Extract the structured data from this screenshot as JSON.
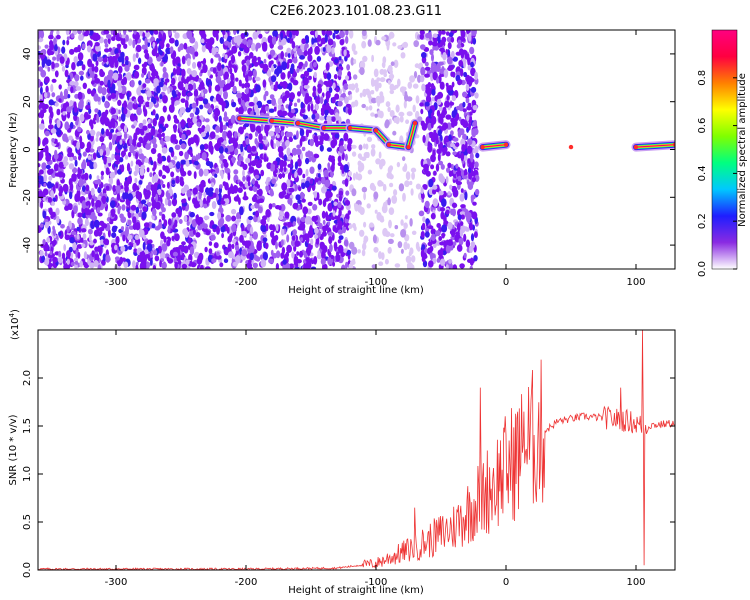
{
  "title": "C2E6.2023.101.08.23.G11",
  "chart_data": [
    {
      "type": "heatmap",
      "xlabel": "Height of straight line (km)",
      "ylabel": "Frequency (Hz)",
      "xlim": [
        -360,
        130
      ],
      "ylim": [
        -50,
        50
      ],
      "x_ticks": [
        -300,
        -200,
        -100,
        0,
        100
      ],
      "y_ticks": [
        -40,
        -20,
        0,
        20,
        40
      ],
      "colorbar": {
        "label": "Normalized spectral amplitude",
        "range": [
          0,
          1
        ],
        "ticks": [
          "0.0",
          "0.2",
          "0.4",
          "0.6",
          "0.8"
        ],
        "colormap": [
          "#ffffff",
          "#8a2be2",
          "#1e1eff",
          "#00c8ff",
          "#00ff80",
          "#80ff00",
          "#ffff00",
          "#ff8000",
          "#ff0040",
          "#ff0080"
        ]
      },
      "regions": [
        {
          "name": "noise",
          "x_range": [
            -360,
            -120
          ],
          "freq_range": [
            -50,
            50
          ],
          "amplitude": 0.1
        },
        {
          "name": "sparse noise",
          "x_range": [
            -120,
            -65
          ],
          "freq_range": [
            -50,
            50
          ],
          "amplitude": 0.05
        },
        {
          "name": "noise",
          "x_range": [
            -65,
            -22
          ],
          "freq_range": [
            -50,
            50
          ],
          "amplitude": 0.15
        }
      ],
      "ridge": [
        {
          "x": -205,
          "f": 13
        },
        {
          "x": -180,
          "f": 12
        },
        {
          "x": -160,
          "f": 11
        },
        {
          "x": -140,
          "f": 9
        },
        {
          "x": -120,
          "f": 9
        },
        {
          "x": -100,
          "f": 8
        },
        {
          "x": -90,
          "f": 2
        },
        {
          "x": -75,
          "f": 1
        },
        {
          "x": -70,
          "f": 11
        },
        {
          "x": -18,
          "f": 1
        },
        {
          "x": 0,
          "f": 2
        },
        {
          "x": 50,
          "f": 1
        },
        {
          "x": 100,
          "f": 1
        },
        {
          "x": 130,
          "f": 2
        }
      ]
    },
    {
      "type": "line",
      "xlabel": "Height of straight line (km)",
      "ylabel": "SNR (10 * v/v)",
      "y_multiplier": "(x10",
      "y_multiplier_exp": "4",
      "y_multiplier_close": ")",
      "xlim": [
        -360,
        130
      ],
      "ylim": [
        0,
        2.5
      ],
      "x_ticks": [
        -300,
        -200,
        -100,
        0,
        100
      ],
      "y_ticks": [
        "0.0",
        "0.5",
        "1.0",
        "1.5",
        "2.0"
      ],
      "line_color": "#ee3333",
      "profile": [
        {
          "x": -360,
          "y": 0.01
        },
        {
          "x": -200,
          "y": 0.01
        },
        {
          "x": -130,
          "y": 0.02
        },
        {
          "x": -100,
          "y": 0.07
        },
        {
          "x": -80,
          "y": 0.18
        },
        {
          "x": -60,
          "y": 0.3
        },
        {
          "x": -40,
          "y": 0.45
        },
        {
          "x": -20,
          "y": 0.75
        },
        {
          "x": 0,
          "y": 1.05
        },
        {
          "x": 20,
          "y": 1.35
        },
        {
          "x": 40,
          "y": 1.55
        },
        {
          "x": 60,
          "y": 1.6
        },
        {
          "x": 80,
          "y": 1.58
        },
        {
          "x": 95,
          "y": 1.55
        },
        {
          "x": 105,
          "y": 1.5
        },
        {
          "x": 130,
          "y": 1.53
        }
      ],
      "spikes": [
        {
          "x": -70,
          "y": 0.65
        },
        {
          "x": -20,
          "y": 1.9
        },
        {
          "x": 14,
          "y": 1.65
        },
        {
          "x": 88,
          "y": 1.9
        },
        {
          "x": 105,
          "y": 2.5
        },
        {
          "x": 106,
          "y": 0.05
        }
      ]
    }
  ]
}
